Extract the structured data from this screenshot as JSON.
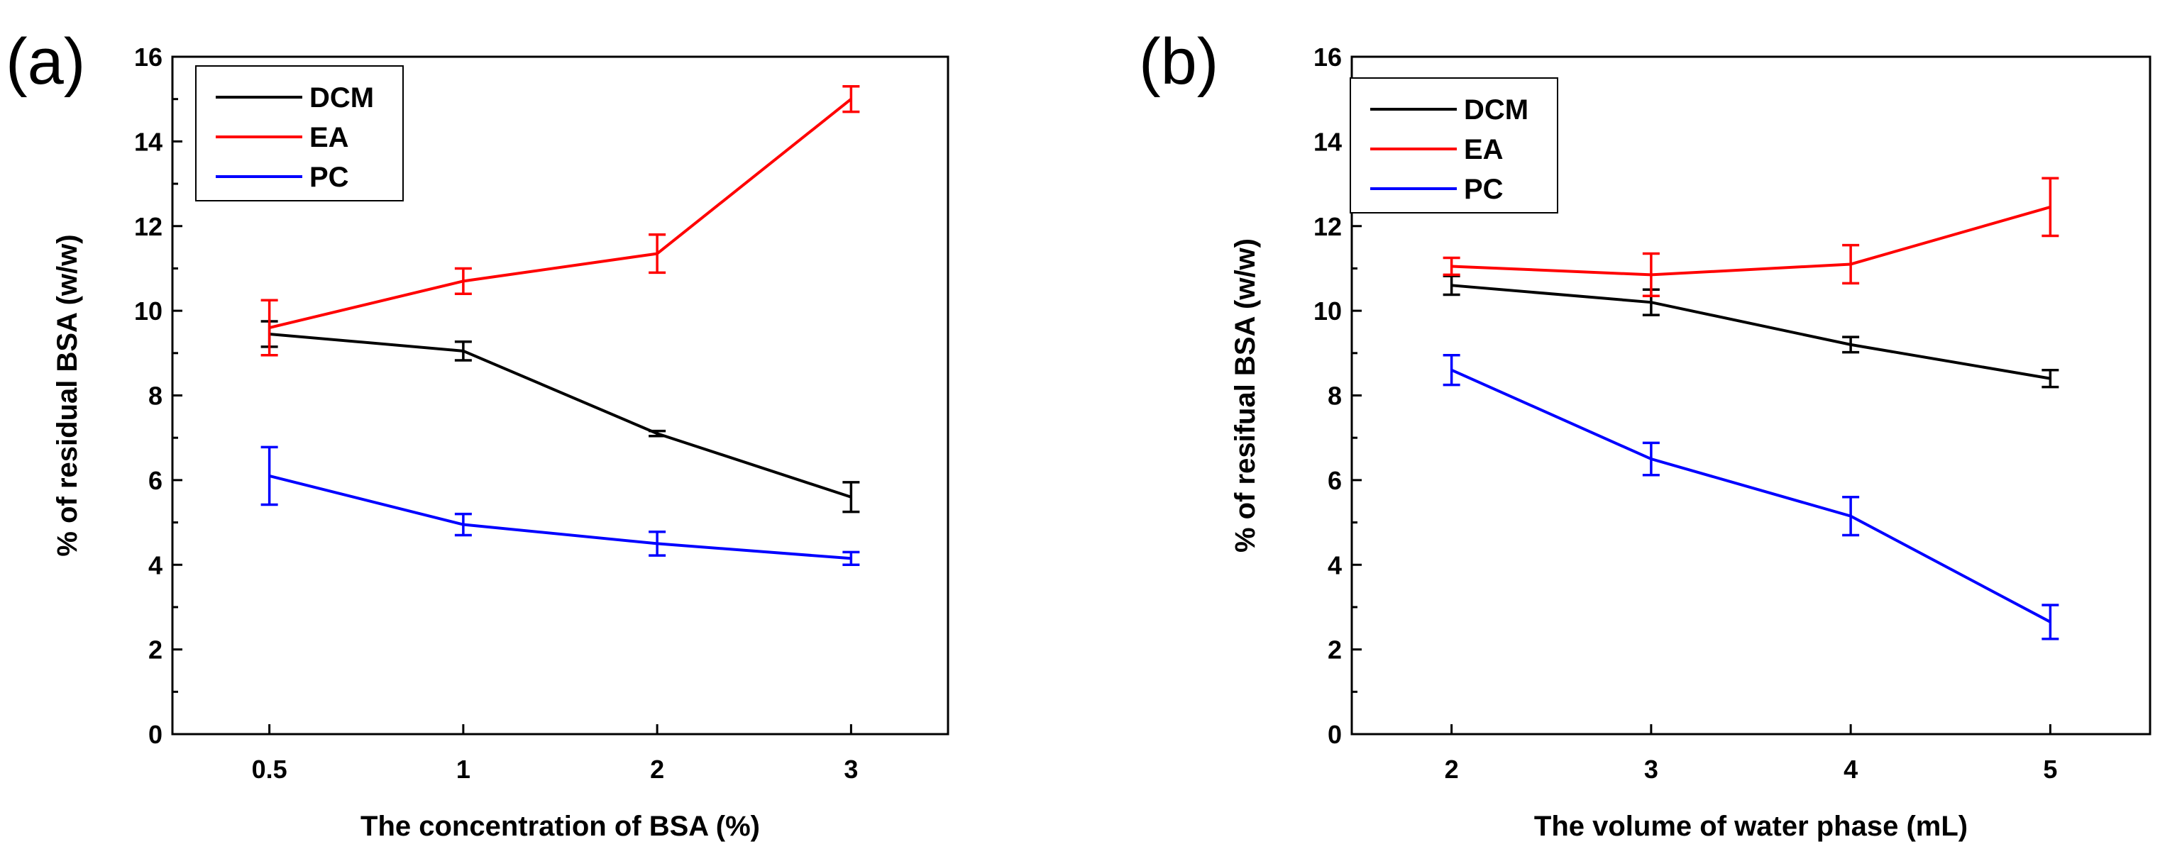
{
  "chart_data": [
    {
      "type": "line",
      "panel_label": "(a)",
      "title": "",
      "xlabel": "The concentration of BSA (%)",
      "ylabel": "% of residual BSA (w/w)",
      "categories": [
        "0.5",
        "1",
        "2",
        "3"
      ],
      "ylim": [
        0,
        16
      ],
      "yticks": [
        "0",
        "2",
        "4",
        "6",
        "8",
        "10",
        "12",
        "14",
        "16"
      ],
      "grid": false,
      "legend_position": "top-left",
      "series": [
        {
          "name": "DCM",
          "color": "#000000",
          "values": [
            9.45,
            9.05,
            7.1,
            5.6
          ],
          "errors": [
            0.3,
            0.22,
            0.06,
            0.35
          ]
        },
        {
          "name": "EA",
          "color": "#ff0000",
          "values": [
            9.6,
            10.7,
            11.35,
            15.0
          ],
          "errors": [
            0.65,
            0.3,
            0.45,
            0.3
          ]
        },
        {
          "name": "PC",
          "color": "#0000ff",
          "values": [
            6.1,
            4.95,
            4.5,
            4.15
          ],
          "errors": [
            0.68,
            0.25,
            0.28,
            0.15
          ]
        }
      ]
    },
    {
      "type": "line",
      "panel_label": "(b)",
      "title": "",
      "xlabel": "The volume of water phase (mL)",
      "ylabel": "% of resifual BSA (w/w)",
      "categories": [
        "2",
        "3",
        "4",
        "5"
      ],
      "ylim": [
        0,
        16
      ],
      "yticks": [
        "0",
        "2",
        "4",
        "6",
        "8",
        "10",
        "12",
        "14",
        "16"
      ],
      "grid": false,
      "legend_position": "top-left",
      "series": [
        {
          "name": "DCM",
          "color": "#000000",
          "values": [
            10.6,
            10.2,
            9.2,
            8.4
          ],
          "errors": [
            0.22,
            0.3,
            0.18,
            0.2
          ]
        },
        {
          "name": "EA",
          "color": "#ff0000",
          "values": [
            11.05,
            10.85,
            11.1,
            12.45
          ],
          "errors": [
            0.2,
            0.5,
            0.45,
            0.68
          ]
        },
        {
          "name": "PC",
          "color": "#0000ff",
          "values": [
            8.6,
            6.5,
            5.15,
            2.65
          ],
          "errors": [
            0.35,
            0.38,
            0.45,
            0.4
          ]
        }
      ]
    }
  ]
}
